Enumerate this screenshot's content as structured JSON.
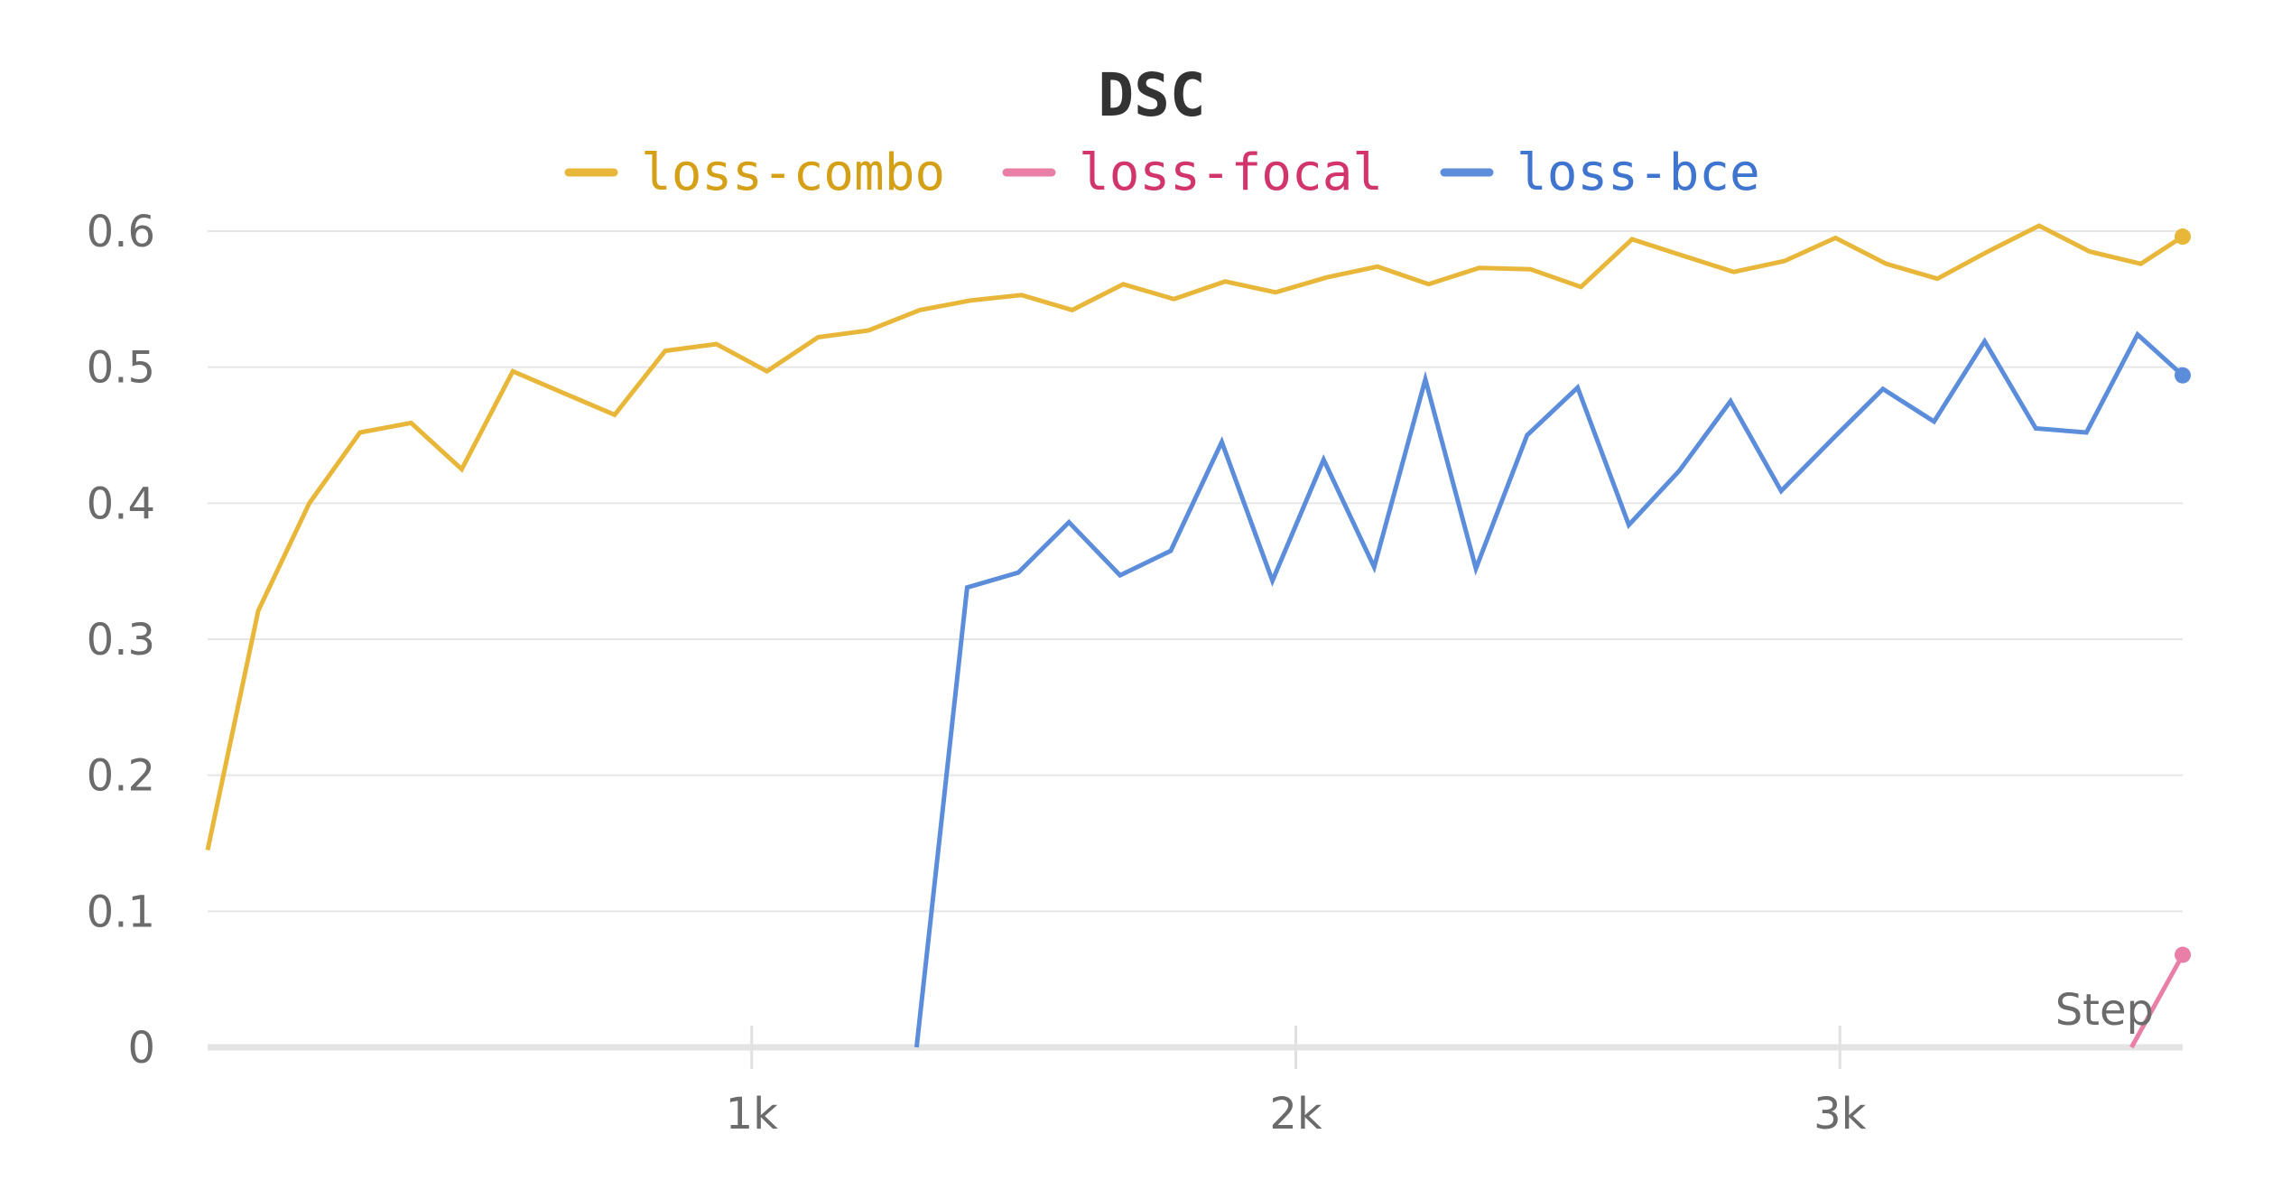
{
  "chart_data": {
    "type": "line",
    "title": "DSC",
    "xlabel": "Step",
    "ylabel": "",
    "xlim": [
      0,
      3630
    ],
    "ylim": [
      0,
      0.6
    ],
    "grid": true,
    "legend_position": "top",
    "y_ticks": [
      {
        "value": 0,
        "label": "0"
      },
      {
        "value": 0.1,
        "label": "0.1"
      },
      {
        "value": 0.2,
        "label": "0.2"
      },
      {
        "value": 0.3,
        "label": "0.3"
      },
      {
        "value": 0.4,
        "label": "0.4"
      },
      {
        "value": 0.5,
        "label": "0.5"
      },
      {
        "value": 0.6,
        "label": "0.6"
      }
    ],
    "x_ticks": [
      {
        "value": 1000,
        "label": "1k"
      },
      {
        "value": 2000,
        "label": "2k"
      },
      {
        "value": 3000,
        "label": "3k"
      }
    ],
    "series": [
      {
        "name": "loss-combo",
        "color": "#e8b73a",
        "label_color": "#d4a017",
        "x": [
          0,
          93,
          187,
          280,
          374,
          467,
          561,
          654,
          748,
          841,
          935,
          1028,
          1122,
          1215,
          1309,
          1402,
          1496,
          1589,
          1683,
          1776,
          1870,
          1963,
          2057,
          2150,
          2244,
          2337,
          2431,
          2524,
          2618,
          2711,
          2805,
          2898,
          2992,
          3085,
          3179,
          3272,
          3366,
          3459,
          3553,
          3630
        ],
        "y": [
          0.145,
          0.321,
          0.4,
          0.452,
          0.459,
          0.425,
          0.497,
          0.481,
          0.465,
          0.512,
          0.517,
          0.497,
          0.522,
          0.527,
          0.542,
          0.549,
          0.553,
          0.542,
          0.561,
          0.55,
          0.563,
          0.555,
          0.566,
          0.574,
          0.561,
          0.573,
          0.572,
          0.559,
          0.594,
          0.582,
          0.57,
          0.578,
          0.595,
          0.576,
          0.565,
          0.585,
          0.604,
          0.585,
          0.576,
          0.596
        ]
      },
      {
        "name": "loss-focal",
        "color": "#e97fa6",
        "label_color": "#d1356b",
        "x": [
          3536,
          3630
        ],
        "y": [
          0,
          0.068
        ]
      },
      {
        "name": "loss-bce",
        "color": "#5b8ddb",
        "label_color": "#3f74cf",
        "x": [
          1303,
          1396,
          1490,
          1583,
          1677,
          1770,
          1864,
          1957,
          2051,
          2144,
          2238,
          2331,
          2425,
          2518,
          2612,
          2705,
          2799,
          2892,
          2986,
          3079,
          3173,
          3266,
          3360,
          3453,
          3547,
          3630
        ],
        "y": [
          0,
          0.338,
          0.349,
          0.386,
          0.347,
          0.365,
          0.445,
          0.343,
          0.432,
          0.353,
          0.491,
          0.352,
          0.45,
          0.485,
          0.384,
          0.424,
          0.475,
          0.409,
          0.447,
          0.484,
          0.46,
          0.519,
          0.455,
          0.452,
          0.524,
          0.494
        ]
      }
    ]
  }
}
